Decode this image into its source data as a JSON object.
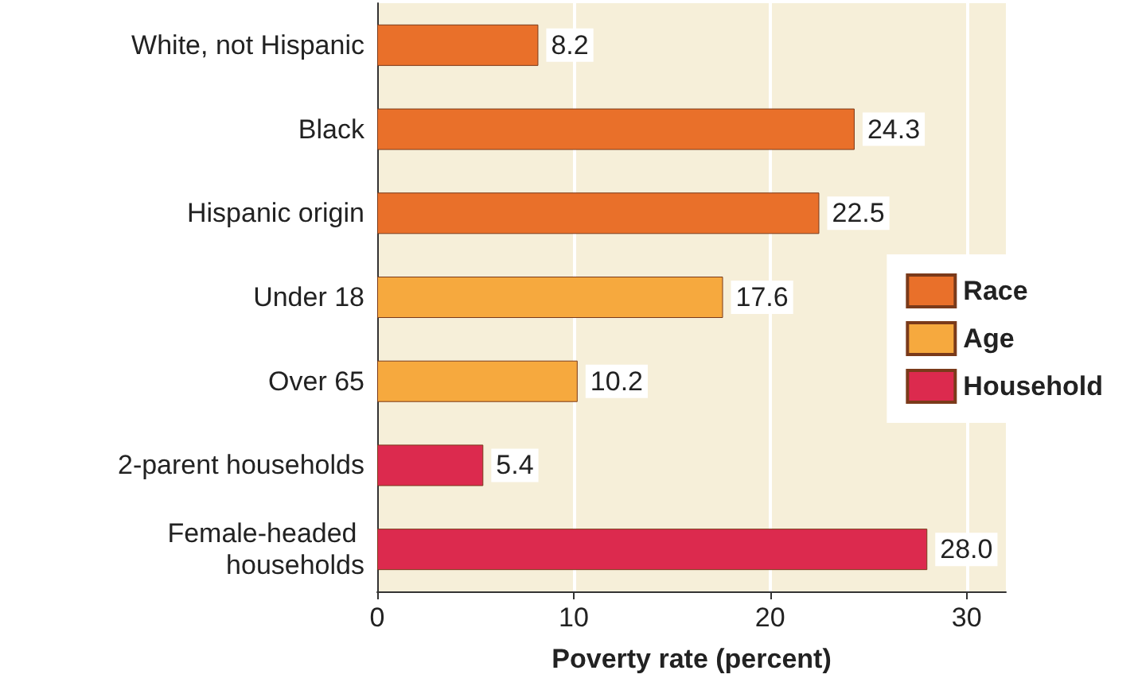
{
  "chart_data": {
    "type": "bar",
    "orientation": "horizontal",
    "stacked": true,
    "xlabel": "Poverty rate (percent)",
    "categories": [
      "White, not Hispanic",
      "Black",
      "Hispanic origin",
      "Under 18",
      "Over 65",
      "2-parent households",
      "Female-headed households"
    ],
    "series": [
      {
        "name": "Race",
        "color": "#e9702a",
        "values": [
          8.2,
          24.3,
          22.5,
          null,
          null,
          null,
          null
        ],
        "value_labels": [
          "8.2",
          "24.3",
          "22.5",
          null,
          null,
          null,
          null
        ]
      },
      {
        "name": "Age",
        "color": "#f6a93e",
        "values": [
          null,
          null,
          null,
          17.6,
          10.2,
          null,
          null
        ],
        "value_labels": [
          null,
          null,
          null,
          "17.6",
          "10.2",
          null,
          null
        ]
      },
      {
        "name": "Household",
        "color": "#dc2a4e",
        "values": [
          null,
          null,
          null,
          null,
          null,
          5.4,
          28.0
        ],
        "value_labels": [
          null,
          null,
          null,
          null,
          null,
          "5.4",
          "28.0"
        ]
      }
    ],
    "xlim": [
      0,
      32
    ],
    "xticks": [
      0,
      10,
      20,
      30
    ],
    "grid": "x",
    "legend": "right"
  }
}
